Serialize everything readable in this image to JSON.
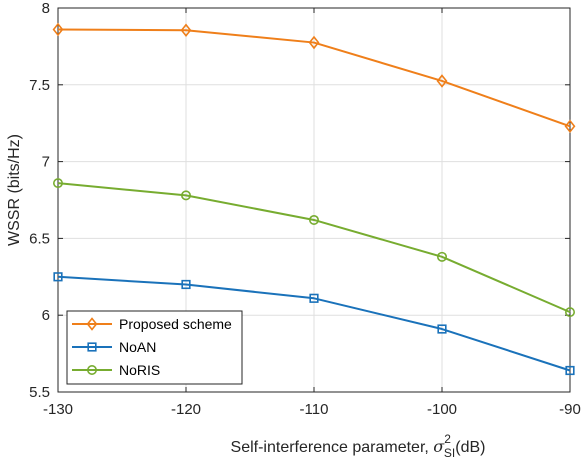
{
  "chart_data": {
    "type": "line",
    "title": "",
    "xlabel": {
      "prefix": "Self-interference parameter, ",
      "symbol": "σ",
      "superscript": "2",
      "subscript": "SI",
      "suffix": "(dB)"
    },
    "ylabel": "WSSR (bits/Hz)",
    "x": [
      -130,
      -120,
      -110,
      -100,
      -90
    ],
    "xlim": [
      -130,
      -90
    ],
    "ylim": [
      5.5,
      8
    ],
    "xticks": [
      -130,
      -120,
      -110,
      -100,
      -90
    ],
    "yticks": [
      5.5,
      6,
      6.5,
      7,
      7.5,
      8
    ],
    "xtick_labels": [
      "-130",
      "-120",
      "-110",
      "-100",
      "-90"
    ],
    "ytick_labels": [
      "5.5",
      "6",
      "6.5",
      "7",
      "7.5",
      "8"
    ],
    "grid": true,
    "legend_position": "bottom-left",
    "series": [
      {
        "name": "Proposed scheme",
        "values": [
          7.86,
          7.855,
          7.775,
          7.525,
          7.23
        ],
        "color": "#EF7F1A",
        "marker": "diamond"
      },
      {
        "name": "NoAN",
        "values": [
          6.25,
          6.2,
          6.11,
          5.91,
          5.64
        ],
        "color": "#1A72BA",
        "marker": "square"
      },
      {
        "name": "NoRIS",
        "values": [
          6.86,
          6.78,
          6.62,
          6.38,
          6.02
        ],
        "color": "#77AC30",
        "marker": "circle"
      }
    ]
  }
}
